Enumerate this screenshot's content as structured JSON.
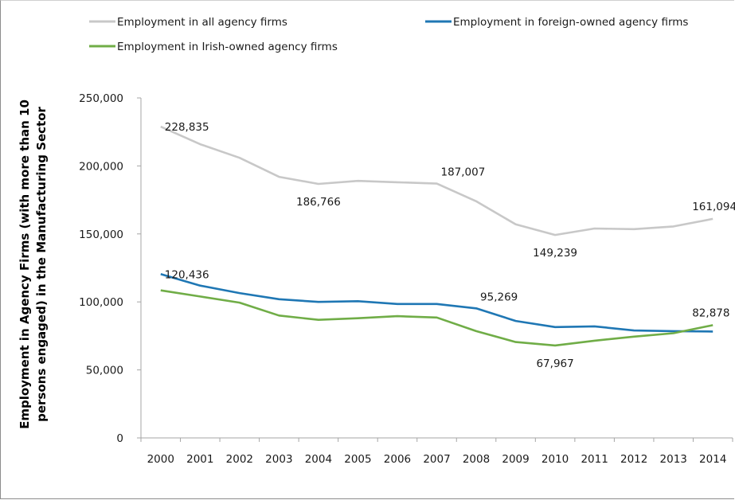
{
  "chart_data": {
    "type": "line",
    "title": "",
    "xlabel": "",
    "ylabel_lines": [
      "Employment in Agency Firms (with more than 10",
      "persons engaged) in the Manufacturing Sector"
    ],
    "x": [
      "2000",
      "2001",
      "2002",
      "2003",
      "2004",
      "2005",
      "2006",
      "2007",
      "2008",
      "2009",
      "2010",
      "2011",
      "2012",
      "2013",
      "2014"
    ],
    "ylim": [
      0,
      250000
    ],
    "yticks": [
      0,
      50000,
      100000,
      150000,
      200000,
      250000
    ],
    "ytick_labels": [
      "0",
      "50,000",
      "100,000",
      "150,000",
      "200,000",
      "250,000"
    ],
    "legend_position": "top",
    "series": [
      {
        "name": "Employment in all agency firms",
        "color": "#c8c8c8",
        "values": [
          228835,
          216000,
          206000,
          192000,
          186766,
          189000,
          188000,
          187007,
          174000,
          157000,
          149239,
          154000,
          153500,
          155500,
          161094
        ]
      },
      {
        "name": "Employment in foreign-owned agency firms",
        "color": "#1f77b4",
        "values": [
          120436,
          112000,
          106500,
          102000,
          100000,
          100500,
          98500,
          98500,
          95269,
          86000,
          81500,
          82000,
          79000,
          78500,
          78200
        ]
      },
      {
        "name": "Employment in Irish-owned agency firms",
        "color": "#70ad47",
        "values": [
          108500,
          104000,
          99500,
          90000,
          86800,
          88000,
          89500,
          88500,
          78500,
          70500,
          67967,
          71500,
          74500,
          77000,
          82878
        ]
      }
    ],
    "data_labels": [
      {
        "series": 0,
        "index": 0,
        "text": "228,835",
        "pos": "right"
      },
      {
        "series": 0,
        "index": 4,
        "text": "186,766",
        "pos": "below"
      },
      {
        "series": 0,
        "index": 7,
        "text": "187,007",
        "pos": "right-above"
      },
      {
        "series": 0,
        "index": 10,
        "text": "149,239",
        "pos": "below"
      },
      {
        "series": 0,
        "index": 14,
        "text": "161,094",
        "pos": "above"
      },
      {
        "series": 1,
        "index": 0,
        "text": "120,436",
        "pos": "right"
      },
      {
        "series": 1,
        "index": 8,
        "text": "95,269",
        "pos": "right-above"
      },
      {
        "series": 2,
        "index": 10,
        "text": "67,967",
        "pos": "below"
      },
      {
        "series": 2,
        "index": 14,
        "text": "82,878",
        "pos": "above"
      }
    ]
  }
}
